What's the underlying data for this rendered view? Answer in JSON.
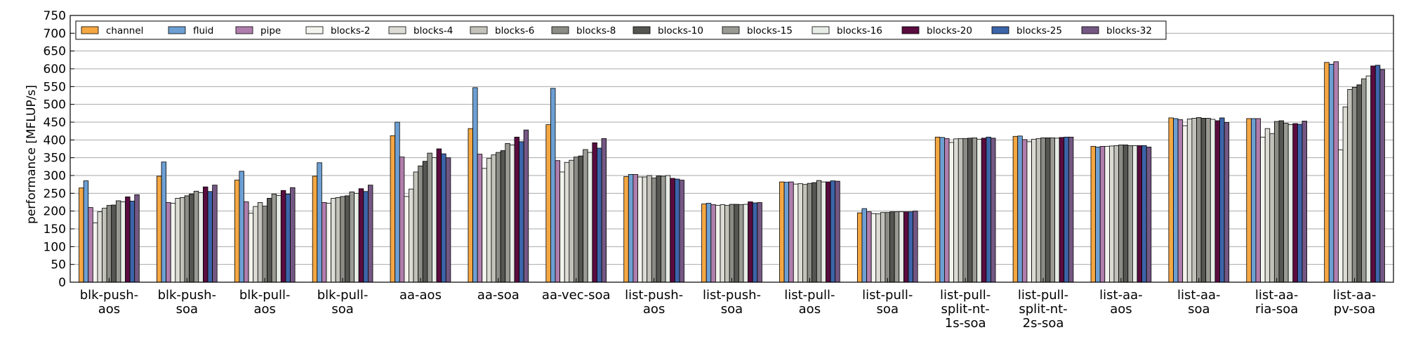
{
  "chart_data": {
    "type": "bar",
    "ylabel": "performance [MFLUP/s]",
    "xlabel": "",
    "title": "",
    "ylim": [
      0,
      750
    ],
    "yticks": [
      0,
      50,
      100,
      150,
      200,
      250,
      300,
      350,
      400,
      450,
      500,
      550,
      600,
      650,
      700,
      750
    ],
    "grid": "horizontal",
    "legend_position": "top-left",
    "categories": [
      [
        "blk-push-",
        "aos"
      ],
      [
        "blk-push-",
        "soa"
      ],
      [
        "blk-pull-",
        "aos"
      ],
      [
        "blk-pull-",
        "soa"
      ],
      [
        "aa-aos"
      ],
      [
        "aa-soa"
      ],
      [
        "aa-vec-soa"
      ],
      [
        "list-push-",
        "aos"
      ],
      [
        "list-push-",
        "soa"
      ],
      [
        "list-pull-",
        "aos"
      ],
      [
        "list-pull-",
        "soa"
      ],
      [
        "list-pull-",
        "split-nt-",
        "1s-soa"
      ],
      [
        "list-pull-",
        "split-nt-",
        "2s-soa"
      ],
      [
        "list-aa-",
        "aos"
      ],
      [
        "list-aa-",
        "soa"
      ],
      [
        "list-aa-",
        "ria-soa"
      ],
      [
        "list-aa-",
        "pv-soa"
      ]
    ],
    "series": [
      {
        "name": "channel",
        "color": "#f5a742",
        "values": [
          265,
          298,
          287,
          298,
          412,
          432,
          443,
          297,
          220,
          282,
          195,
          408,
          410,
          382,
          462,
          460,
          618
        ]
      },
      {
        "name": "fluid",
        "color": "#6d9fd3",
        "values": [
          285,
          338,
          312,
          336,
          450,
          547,
          545,
          303,
          222,
          281,
          207,
          407,
          411,
          380,
          460,
          460,
          613
        ]
      },
      {
        "name": "pipe",
        "color": "#b07eac",
        "values": [
          210,
          224,
          226,
          224,
          352,
          360,
          342,
          303,
          218,
          282,
          198,
          404,
          401,
          382,
          457,
          460,
          620
        ]
      },
      {
        "name": "blocks-2",
        "color": "#f4f4ee",
        "values": [
          167,
          222,
          194,
          222,
          241,
          320,
          310,
          296,
          216,
          276,
          193,
          393,
          395,
          382,
          440,
          408,
          372
        ]
      },
      {
        "name": "blocks-4",
        "color": "#dcdcd5",
        "values": [
          198,
          236,
          213,
          236,
          262,
          348,
          337,
          296,
          218,
          277,
          192,
          403,
          402,
          383,
          459,
          432,
          493
        ]
      },
      {
        "name": "blocks-6",
        "color": "#c2c2ba",
        "values": [
          208,
          238,
          224,
          238,
          310,
          358,
          343,
          300,
          216,
          275,
          196,
          404,
          404,
          384,
          461,
          418,
          542
        ]
      },
      {
        "name": "blocks-8",
        "color": "#8c8c86",
        "values": [
          216,
          243,
          214,
          241,
          327,
          365,
          352,
          293,
          219,
          278,
          196,
          404,
          406,
          386,
          463,
          452,
          548
        ]
      },
      {
        "name": "blocks-10",
        "color": "#555552",
        "values": [
          217,
          248,
          236,
          243,
          340,
          370,
          355,
          299,
          219,
          280,
          198,
          405,
          406,
          386,
          461,
          454,
          555
        ]
      },
      {
        "name": "blocks-15",
        "color": "#9a9a94",
        "values": [
          229,
          256,
          248,
          254,
          363,
          390,
          373,
          298,
          218,
          286,
          198,
          406,
          406,
          384,
          461,
          447,
          572
        ]
      },
      {
        "name": "blocks-16",
        "color": "#e7ede6",
        "values": [
          226,
          252,
          244,
          250,
          350,
          386,
          365,
          300,
          219,
          282,
          198,
          402,
          405,
          384,
          458,
          443,
          580
        ]
      },
      {
        "name": "blocks-20",
        "color": "#5a0c3f",
        "values": [
          240,
          268,
          258,
          263,
          375,
          408,
          392,
          292,
          226,
          282,
          198,
          405,
          407,
          384,
          454,
          446,
          608
        ]
      },
      {
        "name": "blocks-25",
        "color": "#3c64a8",
        "values": [
          228,
          255,
          248,
          255,
          361,
          395,
          377,
          290,
          223,
          285,
          198,
          408,
          408,
          384,
          462,
          444,
          610
        ]
      },
      {
        "name": "blocks-32",
        "color": "#745783",
        "values": [
          246,
          273,
          266,
          273,
          350,
          428,
          404,
          287,
          224,
          284,
          200,
          405,
          408,
          380,
          449,
          453,
          598
        ]
      }
    ]
  }
}
